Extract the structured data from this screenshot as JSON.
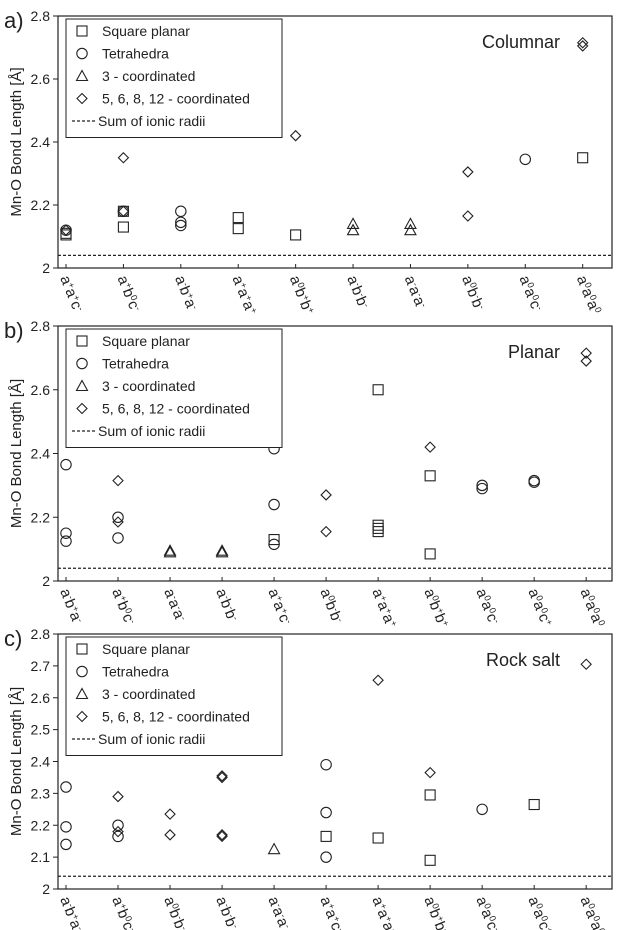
{
  "legend_labels": [
    "Square planar",
    "Tetrahedra",
    "3 - coordinated",
    "5, 6, 8, 12 - coordinated",
    "Sum of ionic radii"
  ],
  "chart_data": [
    {
      "type": "scatter",
      "panel_label": "a)",
      "title": "Columnar",
      "ylabel": "Mn-O Bond Length [Å]",
      "ylim": [
        2.0,
        2.8
      ],
      "yticks": [
        2,
        2.2,
        2.4,
        2.6,
        2.8
      ],
      "legend_position": "top-left",
      "reference_line": {
        "name": "Sum of ionic radii",
        "y": 2.04
      },
      "categories": [
        [
          [
            "a",
            "+"
          ],
          [
            "a",
            "+"
          ],
          [
            "c",
            "-"
          ]
        ],
        [
          [
            "a",
            "+"
          ],
          [
            "b",
            "0"
          ],
          [
            "c",
            "-"
          ]
        ],
        [
          [
            "a",
            "-"
          ],
          [
            "b",
            "+"
          ],
          [
            "a",
            "-"
          ]
        ],
        [
          [
            "a",
            "+"
          ],
          [
            "a",
            "+"
          ],
          [
            "a",
            "+"
          ]
        ],
        [
          [
            "a",
            "0"
          ],
          [
            "b",
            "+"
          ],
          [
            "b",
            "+"
          ]
        ],
        [
          [
            "a",
            "-"
          ],
          [
            "b",
            "-"
          ],
          [
            "b",
            "-"
          ]
        ],
        [
          [
            "a",
            "-"
          ],
          [
            "a",
            "-"
          ],
          [
            "a",
            "-"
          ]
        ],
        [
          [
            "a",
            "0"
          ],
          [
            "b",
            "-"
          ],
          [
            "b",
            "-"
          ]
        ],
        [
          [
            "a",
            "0"
          ],
          [
            "a",
            "0"
          ],
          [
            "c",
            "-"
          ]
        ],
        [
          [
            "a",
            "0"
          ],
          [
            "a",
            "0"
          ],
          [
            "a",
            "0"
          ]
        ]
      ],
      "series": [
        {
          "name": "Square planar",
          "marker": "square",
          "points": [
            [
              0,
              2.105
            ],
            [
              0,
              2.11
            ],
            [
              1,
              2.13
            ],
            [
              1,
              2.18
            ],
            [
              3,
              2.16
            ],
            [
              3,
              2.125
            ],
            [
              4,
              2.105
            ],
            [
              9,
              2.35
            ]
          ]
        },
        {
          "name": "Tetrahedra",
          "marker": "circle",
          "points": [
            [
              0,
              2.12
            ],
            [
              1,
              2.18
            ],
            [
              2,
              2.18
            ],
            [
              2,
              2.145
            ],
            [
              2,
              2.135
            ],
            [
              8,
              2.345
            ]
          ]
        },
        {
          "name": "3 - coordinated",
          "marker": "triangle",
          "points": [
            [
              5,
              2.14
            ],
            [
              5,
              2.12
            ],
            [
              6,
              2.14
            ],
            [
              6,
              2.12
            ]
          ]
        },
        {
          "name": "5, 6, 8, 12 - coordinated",
          "marker": "diamond",
          "points": [
            [
              0,
              2.12
            ],
            [
              1,
              2.35
            ],
            [
              1,
              2.18
            ],
            [
              4,
              2.42
            ],
            [
              7,
              2.305
            ],
            [
              7,
              2.165
            ],
            [
              9,
              2.715
            ],
            [
              9,
              2.705
            ]
          ]
        }
      ]
    },
    {
      "type": "scatter",
      "panel_label": "b)",
      "title": "Planar",
      "ylabel": "Mn-O Bond Length [Å]",
      "ylim": [
        2.0,
        2.8
      ],
      "yticks": [
        2,
        2.2,
        2.4,
        2.6,
        2.8
      ],
      "legend_position": "top-left",
      "reference_line": {
        "name": "Sum of ionic radii",
        "y": 2.04
      },
      "categories": [
        [
          [
            "a",
            "-"
          ],
          [
            "b",
            "+"
          ],
          [
            "a",
            "-"
          ]
        ],
        [
          [
            "a",
            "+"
          ],
          [
            "b",
            "0"
          ],
          [
            "c",
            "-"
          ]
        ],
        [
          [
            "a",
            "-"
          ],
          [
            "a",
            "-"
          ],
          [
            "a",
            "-"
          ]
        ],
        [
          [
            "a",
            "-"
          ],
          [
            "b",
            "-"
          ],
          [
            "b",
            "-"
          ]
        ],
        [
          [
            "a",
            "+"
          ],
          [
            "a",
            "+"
          ],
          [
            "c",
            "-"
          ]
        ],
        [
          [
            "a",
            "0"
          ],
          [
            "b",
            "-"
          ],
          [
            "b",
            "-"
          ]
        ],
        [
          [
            "a",
            "+"
          ],
          [
            "a",
            "+"
          ],
          [
            "a",
            "+"
          ]
        ],
        [
          [
            "a",
            "0"
          ],
          [
            "b",
            "+"
          ],
          [
            "b",
            "+"
          ]
        ],
        [
          [
            "a",
            "0"
          ],
          [
            "a",
            "0"
          ],
          [
            "c",
            "-"
          ]
        ],
        [
          [
            "a",
            "0"
          ],
          [
            "a",
            "0"
          ],
          [
            "c",
            "+"
          ]
        ],
        [
          [
            "a",
            "0"
          ],
          [
            "a",
            "0"
          ],
          [
            "a",
            "0"
          ]
        ]
      ],
      "series": [
        {
          "name": "Square planar",
          "marker": "square",
          "points": [
            [
              4,
              2.13
            ],
            [
              6,
              2.6
            ],
            [
              6,
              2.175
            ],
            [
              6,
              2.165
            ],
            [
              6,
              2.155
            ],
            [
              7,
              2.33
            ],
            [
              7,
              2.085
            ]
          ]
        },
        {
          "name": "Tetrahedra",
          "marker": "circle",
          "points": [
            [
              0,
              2.365
            ],
            [
              0,
              2.15
            ],
            [
              0,
              2.125
            ],
            [
              1,
              2.2
            ],
            [
              1,
              2.135
            ],
            [
              4,
              2.415
            ],
            [
              4,
              2.24
            ],
            [
              4,
              2.115
            ],
            [
              8,
              2.3
            ],
            [
              8,
              2.29
            ],
            [
              9,
              2.315
            ],
            [
              9,
              2.31
            ]
          ]
        },
        {
          "name": "3 - coordinated",
          "marker": "triangle",
          "points": [
            [
              2,
              2.095
            ],
            [
              2,
              2.09
            ],
            [
              3,
              2.095
            ],
            [
              3,
              2.09
            ]
          ]
        },
        {
          "name": "5, 6, 8, 12 - coordinated",
          "marker": "diamond",
          "points": [
            [
              1,
              2.315
            ],
            [
              1,
              2.185
            ],
            [
              5,
              2.27
            ],
            [
              5,
              2.155
            ],
            [
              7,
              2.42
            ],
            [
              10,
              2.715
            ],
            [
              10,
              2.69
            ]
          ]
        }
      ]
    },
    {
      "type": "scatter",
      "panel_label": "c)",
      "title": "Rock salt",
      "ylabel": "Mn-O Bond Length [Å]",
      "ylim": [
        2.0,
        2.8
      ],
      "yticks": [
        2,
        2.1,
        2.2,
        2.3,
        2.4,
        2.5,
        2.6,
        2.7,
        2.8
      ],
      "legend_position": "top-left",
      "reference_line": {
        "name": "Sum of ionic radii",
        "y": 2.04
      },
      "categories": [
        [
          [
            "a",
            "-"
          ],
          [
            "b",
            "+"
          ],
          [
            "a",
            "-"
          ]
        ],
        [
          [
            "a",
            "+"
          ],
          [
            "b",
            "0"
          ],
          [
            "c",
            "-"
          ]
        ],
        [
          [
            "a",
            "0"
          ],
          [
            "b",
            "-"
          ],
          [
            "b",
            "-"
          ]
        ],
        [
          [
            "a",
            "-"
          ],
          [
            "b",
            "-"
          ],
          [
            "b",
            "-"
          ]
        ],
        [
          [
            "a",
            "-"
          ],
          [
            "a",
            "-"
          ],
          [
            "a",
            "-"
          ]
        ],
        [
          [
            "a",
            "+"
          ],
          [
            "a",
            "+"
          ],
          [
            "c",
            "-"
          ]
        ],
        [
          [
            "a",
            "+"
          ],
          [
            "a",
            "+"
          ],
          [
            "a",
            "+"
          ]
        ],
        [
          [
            "a",
            "0"
          ],
          [
            "b",
            "+"
          ],
          [
            "b",
            "+"
          ]
        ],
        [
          [
            "a",
            "0"
          ],
          [
            "a",
            "0"
          ],
          [
            "c",
            "-"
          ]
        ],
        [
          [
            "a",
            "0"
          ],
          [
            "a",
            "0"
          ],
          [
            "c",
            "+"
          ]
        ],
        [
          [
            "a",
            "0"
          ],
          [
            "a",
            "0"
          ],
          [
            "a",
            "0"
          ]
        ]
      ],
      "series": [
        {
          "name": "Square planar",
          "marker": "square",
          "points": [
            [
              5,
              2.165
            ],
            [
              6,
              2.16
            ],
            [
              7,
              2.295
            ],
            [
              7,
              2.09
            ],
            [
              9,
              2.265
            ]
          ]
        },
        {
          "name": "Tetrahedra",
          "marker": "circle",
          "points": [
            [
              0,
              2.32
            ],
            [
              0,
              2.195
            ],
            [
              0,
              2.14
            ],
            [
              1,
              2.2
            ],
            [
              1,
              2.165
            ],
            [
              5,
              2.39
            ],
            [
              5,
              2.24
            ],
            [
              5,
              2.1
            ],
            [
              8,
              2.25
            ]
          ]
        },
        {
          "name": "3 - coordinated",
          "marker": "triangle",
          "points": [
            [
              4,
              2.125
            ]
          ]
        },
        {
          "name": "5, 6, 8, 12 - coordinated",
          "marker": "diamond",
          "points": [
            [
              1,
              2.29
            ],
            [
              1,
              2.18
            ],
            [
              2,
              2.235
            ],
            [
              2,
              2.17
            ],
            [
              3,
              2.355
            ],
            [
              3,
              2.35
            ],
            [
              3,
              2.17
            ],
            [
              3,
              2.165
            ],
            [
              6,
              2.655
            ],
            [
              7,
              2.365
            ],
            [
              10,
              2.705
            ]
          ]
        }
      ]
    }
  ]
}
